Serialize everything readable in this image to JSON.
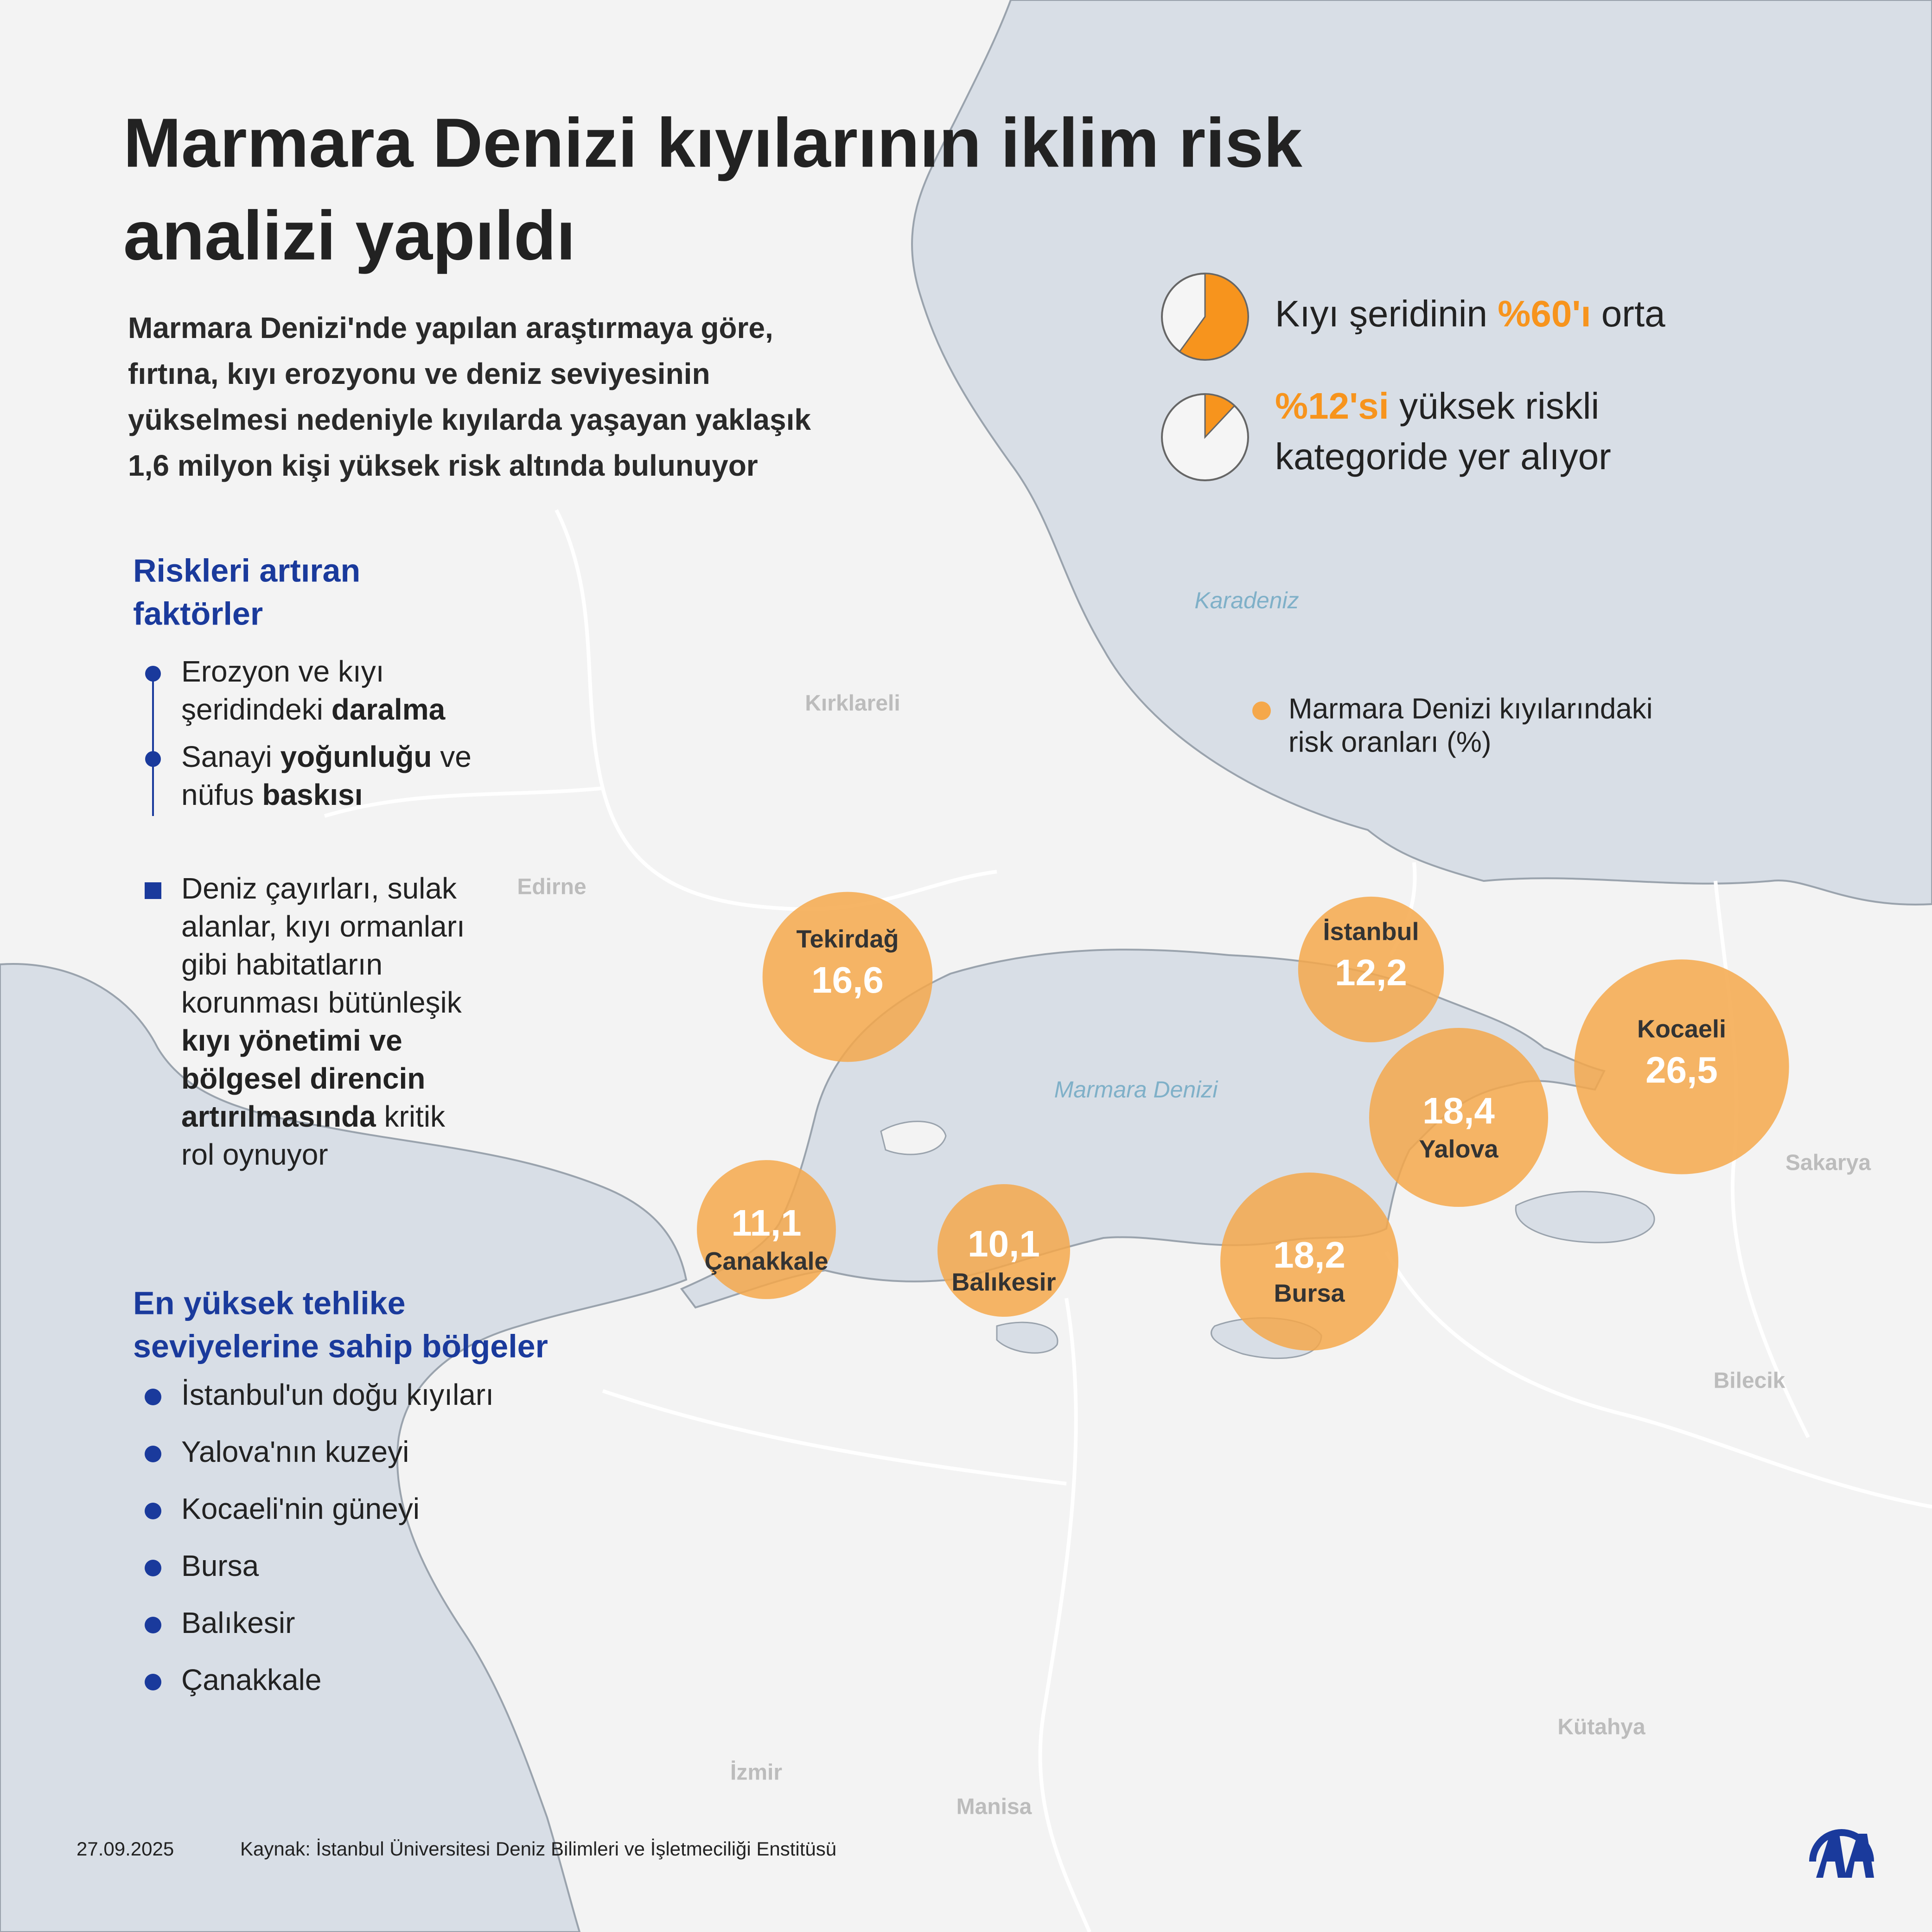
{
  "title_lines": [
    "Marmara Denizi kıyılarının iklim risk",
    "analizi yapıldı"
  ],
  "subtitle_lines": [
    "Marmara Denizi'nde yapılan araştırmaya göre,",
    "fırtına, kıyı erozyonu ve deniz seviyesinin",
    "yükselmesi nedeniyle kıyılarda yaşayan yaklaşık",
    "1,6 milyon kişi yüksek risk altında bulunuyor"
  ],
  "colors": {
    "accent": "#f7941d",
    "bubble": "#f5a84b",
    "heading": "#1a3a9c",
    "sea": "#d8dee6",
    "land": "#f3f3f3"
  },
  "stats": [
    {
      "value": 60,
      "lines": [
        [
          {
            "text": "Kıyı şeridinin "
          },
          {
            "text": "%60'ı",
            "highlight": true
          },
          {
            "text": " orta"
          }
        ]
      ]
    },
    {
      "value": 12,
      "lines": [
        [
          {
            "text": "%12'si",
            "highlight": true
          },
          {
            "text": " yüksek riskli"
          }
        ],
        [
          {
            "text": "kategoride yer alıyor"
          }
        ]
      ]
    }
  ],
  "factors": {
    "heading_lines": [
      "Riskleri artıran",
      "faktörler"
    ],
    "items": [
      {
        "marker": "dot",
        "lines": [
          [
            {
              "text": "Erozyon ve kıyı"
            }
          ],
          [
            {
              "text": "şeridindeki "
            },
            {
              "text": "daralma",
              "bold": true
            }
          ]
        ]
      },
      {
        "marker": "dot",
        "lines": [
          [
            {
              "text": "Sanayi "
            },
            {
              "text": "yoğunluğu",
              "bold": true
            },
            {
              "text": " ve"
            }
          ],
          [
            {
              "text": "nüfus "
            },
            {
              "text": "baskısı",
              "bold": true
            }
          ]
        ]
      },
      {
        "marker": "square",
        "lines": [
          [
            {
              "text": "Deniz çayırları, sulak"
            }
          ],
          [
            {
              "text": "alanlar, kıyı ormanları"
            }
          ],
          [
            {
              "text": "gibi habitatların"
            }
          ],
          [
            {
              "text": "korunması bütünleşik"
            }
          ],
          [
            {
              "text": "kıyı yönetimi ve",
              "bold": true
            }
          ],
          [
            {
              "text": "bölgesel direncin",
              "bold": true
            }
          ],
          [
            {
              "text": "artırılmasında",
              "bold": true
            },
            {
              "text": " kritik"
            }
          ],
          [
            {
              "text": "rol oynuyor"
            }
          ]
        ]
      }
    ]
  },
  "regions_list": {
    "heading_lines": [
      "En yüksek tehlike",
      "seviyelerine sahip bölgeler"
    ],
    "items": [
      "İstanbul'un doğu kıyıları",
      "Yalova'nın kuzeyi",
      "Kocaeli'nin güneyi",
      "Bursa",
      "Balıkesir",
      "Çanakkale"
    ]
  },
  "map": {
    "seas": [
      "Karadeniz",
      "Marmara Denizi"
    ],
    "places": [
      "Kırklareli",
      "Edirne",
      "Sakarya",
      "Bilecik",
      "Kütahya",
      "İzmir",
      "Manisa"
    ]
  },
  "legend": {
    "lines": [
      "Marmara Denizi kıyılarındaki",
      "risk oranları (%)"
    ]
  },
  "bubbles": [
    {
      "name": "Tekirdağ",
      "value": 16.6,
      "value_label": "16,6"
    },
    {
      "name": "İstanbul",
      "value": 12.2,
      "value_label": "12,2"
    },
    {
      "name": "Kocaeli",
      "value": 26.5,
      "value_label": "26,5"
    },
    {
      "name": "Yalova",
      "value": 18.4,
      "value_label": "18,4"
    },
    {
      "name": "Çanakkale",
      "value": 11.1,
      "value_label": "11,1"
    },
    {
      "name": "Balıkesir",
      "value": 10.1,
      "value_label": "10,1"
    },
    {
      "name": "Bursa",
      "value": 18.2,
      "value_label": "18,2"
    }
  ],
  "footer": {
    "date": "27.09.2025",
    "source": "Kaynak: İstanbul Üniversitesi Deniz Bilimleri ve İşletmeciliği Enstitüsü"
  }
}
